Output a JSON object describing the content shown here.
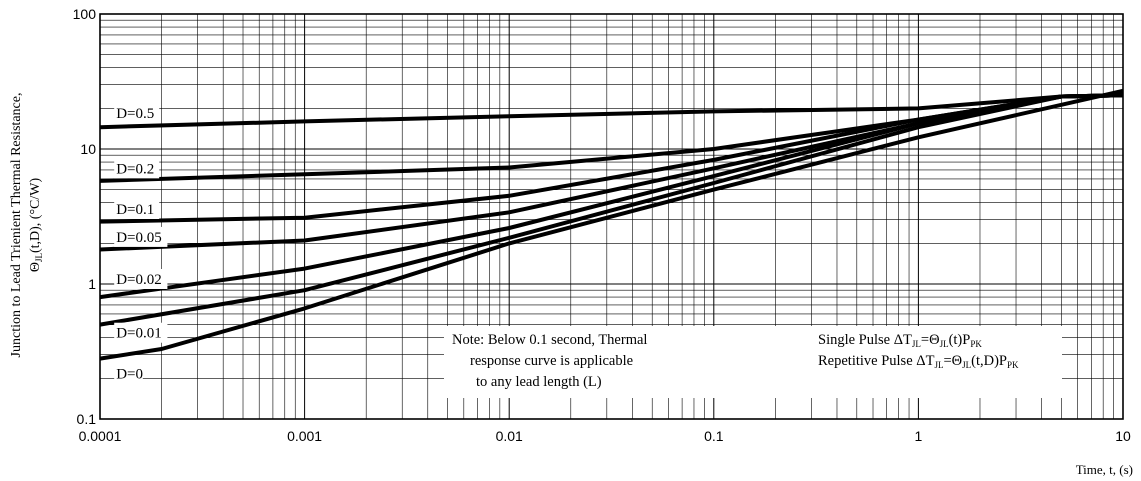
{
  "chart_data": {
    "type": "line",
    "xscale": "log",
    "yscale": "log",
    "xlim": [
      0.0001,
      10
    ],
    "ylim": [
      0.1,
      100
    ],
    "grid": true,
    "x_ticks": [
      "0.0001",
      "0.001",
      "0.01",
      "0.1",
      "1",
      "10"
    ],
    "y_ticks": [
      "0.1",
      "1",
      "10",
      "100"
    ],
    "xlabel": "Time, t, (s)",
    "ylabel_line1": "Junction to Lead Trienient Thermal Resistance,",
    "ylabel_sym": "Θ",
    "ylabel_sub": "JL",
    "ylabel_rest": "(t,D), (°C/W)",
    "series": [
      {
        "name": "D=0.5",
        "x": [
          0.0001,
          0.001,
          0.01,
          0.1,
          1,
          5,
          10
        ],
        "y": [
          14.5,
          16,
          17.5,
          19,
          20,
          24.5,
          25
        ]
      },
      {
        "name": "D=0.2",
        "x": [
          0.0001,
          0.001,
          0.01,
          0.1,
          1,
          5,
          10
        ],
        "y": [
          5.8,
          6.5,
          7.3,
          10,
          16.5,
          24.5,
          25
        ]
      },
      {
        "name": "D=0.1",
        "x": [
          0.0001,
          0.001,
          0.01,
          0.1,
          1,
          5,
          10
        ],
        "y": [
          2.9,
          3.1,
          4.5,
          8.3,
          16.5,
          24.5,
          25
        ]
      },
      {
        "name": "D=0.05",
        "x": [
          0.0001,
          0.001,
          0.01,
          0.1,
          1,
          5,
          10
        ],
        "y": [
          1.8,
          2.1,
          3.4,
          7.2,
          15.5,
          24.5,
          25
        ]
      },
      {
        "name": "D=0.02",
        "x": [
          0.0001,
          0.001,
          0.01,
          0.1,
          1,
          5,
          10
        ],
        "y": [
          0.8,
          1.3,
          2.6,
          6.3,
          15.5,
          24.5,
          25
        ]
      },
      {
        "name": "D=0.01",
        "x": [
          0.0001,
          0.001,
          0.01,
          0.1,
          1,
          5,
          10
        ],
        "y": [
          0.5,
          0.9,
          2.2,
          5.6,
          14.5,
          24.5,
          25
        ]
      },
      {
        "name": "D=0",
        "x": [
          0.0001,
          0.0002,
          0.001,
          0.01,
          0.1,
          1,
          10
        ],
        "y": [
          0.28,
          0.33,
          0.66,
          2.0,
          5.0,
          12.2,
          27
        ]
      }
    ],
    "labels": [
      {
        "text": "D=0.5",
        "x": 0.00012,
        "y": 17
      },
      {
        "text": "D=0.2",
        "x": 0.00012,
        "y": 6.6
      },
      {
        "text": "D=0.1",
        "x": 0.00012,
        "y": 3.3
      },
      {
        "text": "D=0.05",
        "x": 0.00012,
        "y": 2.05
      },
      {
        "text": "D=0.02",
        "x": 0.00012,
        "y": 1.0
      },
      {
        "text": "D=0.01",
        "x": 0.00012,
        "y": 0.4
      },
      {
        "text": "D=0",
        "x": 0.00012,
        "y": 0.2
      }
    ],
    "note_lines": [
      "Note: Below 0.1 second, Thermal",
      "response curve is applicable",
      "to any lead length (L)"
    ],
    "pulse_lines": [
      {
        "prefix": "Single Pulse ΔT",
        "sub1": "JL",
        "mid": "=Θ",
        "sub2": "JL",
        "rest": "(t)P",
        "sub3": "PK"
      },
      {
        "prefix": "Repetitive Pulse ΔT",
        "sub1": "JL",
        "mid": "=Θ",
        "sub2": "JL",
        "rest": "(t,D)P",
        "sub3": "PK"
      }
    ]
  }
}
